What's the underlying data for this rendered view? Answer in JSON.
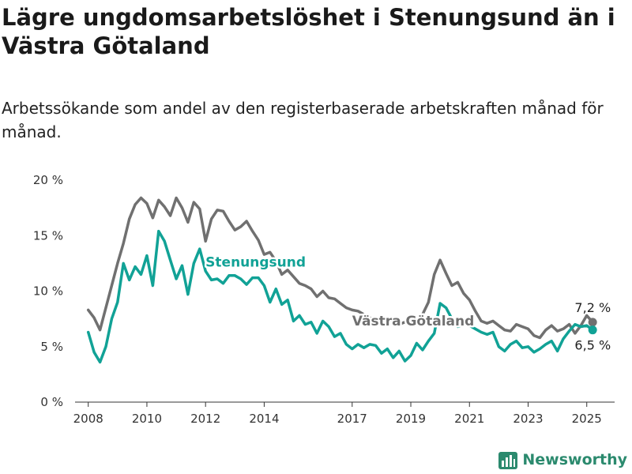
{
  "header": {
    "title": "Lägre ungdomsarbetslöshet i Stenungsund än i Västra Götaland",
    "subtitle": "Arbetssökande som andel av den registerbaserade arbetskraften månad för månad."
  },
  "brand": {
    "name": "Newsworthy",
    "icon": "bar-chart-logo-icon",
    "color": "#2b8a6e"
  },
  "chart_data": {
    "type": "line",
    "title": "Lägre ungdomsarbetslöshet i Stenungsund än i Västra Götaland",
    "subtitle": "Arbetssökande som andel av den registerbaserade arbetskraften månad för månad.",
    "xlabel": "",
    "ylabel": "",
    "xlim": [
      2007.55,
      2025.95
    ],
    "ylim": [
      0,
      20
    ],
    "x_ticks": [
      2008,
      2010,
      2012,
      2014,
      2017,
      2019,
      2021,
      2023,
      2025
    ],
    "x_tick_labels": [
      "2008",
      "2010",
      "2012",
      "2014",
      "2017",
      "2019",
      "2021",
      "2023",
      "2025"
    ],
    "y_ticks": [
      0,
      5,
      10,
      15,
      20
    ],
    "y_tick_labels": [
      "0 %",
      "5 %",
      "10 %",
      "15 %",
      "20 %"
    ],
    "grid": "none",
    "legend": "inline labels",
    "series": [
      {
        "name": "Västra Götaland",
        "color": "#707070",
        "end_label": "7,2 %",
        "x": [
          2008.0,
          2008.2,
          2008.4,
          2008.6,
          2008.8,
          2009.0,
          2009.2,
          2009.4,
          2009.6,
          2009.8,
          2010.0,
          2010.2,
          2010.4,
          2010.6,
          2010.8,
          2011.0,
          2011.2,
          2011.4,
          2011.6,
          2011.8,
          2012.0,
          2012.2,
          2012.4,
          2012.6,
          2012.8,
          2013.0,
          2013.2,
          2013.4,
          2013.6,
          2013.8,
          2014.0,
          2014.2,
          2014.4,
          2014.6,
          2014.8,
          2015.0,
          2015.2,
          2015.4,
          2015.6,
          2015.8,
          2016.0,
          2016.2,
          2016.4,
          2016.6,
          2016.8,
          2017.0,
          2017.2,
          2017.4,
          2017.6,
          2017.8,
          2018.0,
          2018.2,
          2018.4,
          2018.6,
          2018.8,
          2019.0,
          2019.2,
          2019.4,
          2019.6,
          2019.8,
          2020.0,
          2020.2,
          2020.4,
          2020.6,
          2020.8,
          2021.0,
          2021.2,
          2021.4,
          2021.6,
          2021.8,
          2022.0,
          2022.2,
          2022.4,
          2022.6,
          2022.8,
          2023.0,
          2023.2,
          2023.4,
          2023.6,
          2023.8,
          2024.0,
          2024.2,
          2024.4,
          2024.6,
          2024.8,
          2025.0,
          2025.2
        ],
        "values": [
          8.3,
          7.6,
          6.5,
          8.5,
          10.5,
          12.5,
          14.3,
          16.5,
          17.8,
          18.4,
          17.9,
          16.6,
          18.2,
          17.6,
          16.8,
          18.4,
          17.5,
          16.2,
          18.0,
          17.4,
          14.5,
          16.5,
          17.3,
          17.2,
          16.3,
          15.5,
          15.8,
          16.3,
          15.4,
          14.6,
          13.3,
          13.5,
          12.7,
          11.5,
          11.9,
          11.3,
          10.7,
          10.5,
          10.2,
          9.5,
          10.0,
          9.4,
          9.3,
          8.9,
          8.5,
          8.3,
          8.2,
          7.9,
          7.6,
          7.4,
          7.4,
          7.2,
          7.5,
          7.0,
          7.2,
          7.5,
          7.3,
          7.9,
          9.0,
          11.5,
          12.8,
          11.6,
          10.5,
          10.8,
          9.8,
          9.2,
          8.2,
          7.3,
          7.1,
          7.3,
          6.9,
          6.5,
          6.4,
          7.0,
          6.8,
          6.6,
          6.0,
          5.8,
          6.5,
          6.9,
          6.4,
          6.6,
          7.0,
          6.2,
          6.9,
          7.8,
          7.2
        ]
      },
      {
        "name": "Stenungsund",
        "color": "#11a296",
        "end_label": "6,5 %",
        "x": [
          2008.0,
          2008.2,
          2008.4,
          2008.6,
          2008.8,
          2009.0,
          2009.2,
          2009.4,
          2009.6,
          2009.8,
          2010.0,
          2010.2,
          2010.4,
          2010.6,
          2010.8,
          2011.0,
          2011.2,
          2011.4,
          2011.6,
          2011.8,
          2012.0,
          2012.2,
          2012.4,
          2012.6,
          2012.8,
          2013.0,
          2013.2,
          2013.4,
          2013.6,
          2013.8,
          2014.0,
          2014.2,
          2014.4,
          2014.6,
          2014.8,
          2015.0,
          2015.2,
          2015.4,
          2015.6,
          2015.8,
          2016.0,
          2016.2,
          2016.4,
          2016.6,
          2016.8,
          2017.0,
          2017.2,
          2017.4,
          2017.6,
          2017.8,
          2018.0,
          2018.2,
          2018.4,
          2018.6,
          2018.8,
          2019.0,
          2019.2,
          2019.4,
          2019.6,
          2019.8,
          2020.0,
          2020.2,
          2020.4,
          2020.6,
          2020.8,
          2021.0,
          2021.2,
          2021.4,
          2021.6,
          2021.8,
          2022.0,
          2022.2,
          2022.4,
          2022.6,
          2022.8,
          2023.0,
          2023.2,
          2023.4,
          2023.6,
          2023.8,
          2024.0,
          2024.2,
          2024.4,
          2024.6,
          2024.8,
          2025.0,
          2025.2
        ],
        "values": [
          6.3,
          4.5,
          3.6,
          5.0,
          7.5,
          9.0,
          12.5,
          11.0,
          12.2,
          11.5,
          13.2,
          10.5,
          15.4,
          14.5,
          12.8,
          11.1,
          12.3,
          9.7,
          12.5,
          13.8,
          11.8,
          11.0,
          11.1,
          10.7,
          11.4,
          11.4,
          11.1,
          10.6,
          11.2,
          11.2,
          10.5,
          9.0,
          10.2,
          8.8,
          9.2,
          7.3,
          7.8,
          7.0,
          7.2,
          6.2,
          7.3,
          6.8,
          5.9,
          6.2,
          5.2,
          4.8,
          5.2,
          4.9,
          5.2,
          5.1,
          4.4,
          4.8,
          4.0,
          4.6,
          3.7,
          4.2,
          5.3,
          4.7,
          5.5,
          6.2,
          8.9,
          8.5,
          7.5,
          6.8,
          7.0,
          6.9,
          6.6,
          6.3,
          6.1,
          6.3,
          5.0,
          4.6,
          5.2,
          5.5,
          4.9,
          5.0,
          4.5,
          4.8,
          5.2,
          5.5,
          4.6,
          5.7,
          6.4,
          7.0,
          6.8,
          6.9,
          6.5
        ]
      }
    ]
  }
}
